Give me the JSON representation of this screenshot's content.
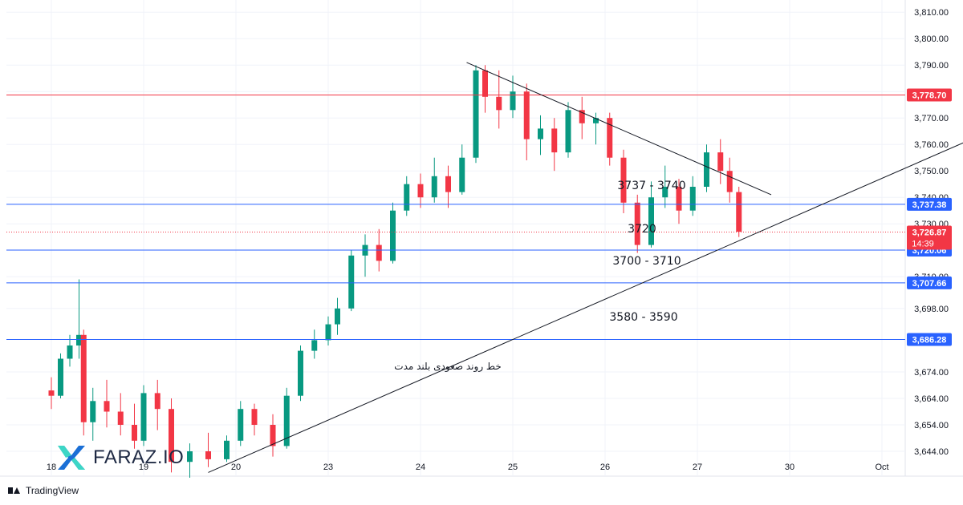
{
  "chart_data": {
    "type": "candlestick",
    "ylim": [
      3634,
      3812
    ],
    "yticks": [
      "3,810.00",
      "3,800.00",
      "3,790.00",
      "3,780.00",
      "3,770.00",
      "3,760.00",
      "3,750.00",
      "3,740.00",
      "3,730.00",
      "3,710.00",
      "3,698.00",
      "3,674.00",
      "3,664.00",
      "3,654.00",
      "3,644.00"
    ],
    "ytick_values": [
      3810,
      3800,
      3790,
      3780,
      3770,
      3760,
      3750,
      3740,
      3730,
      3710,
      3698,
      3674,
      3664,
      3654,
      3644
    ],
    "xticks": [
      "18",
      "19",
      "20",
      "23",
      "24",
      "25",
      "26",
      "27",
      "30",
      "Oct"
    ],
    "xtick_positions": [
      0,
      1,
      2,
      3,
      4,
      5,
      6,
      7,
      8,
      9
    ],
    "candles": [
      [
        0.0,
        3667,
        3672,
        3660,
        3665
      ],
      [
        0.1,
        3665,
        3681,
        3664,
        3679
      ],
      [
        0.2,
        3679,
        3688,
        3676,
        3684
      ],
      [
        0.3,
        3684,
        3709,
        3679,
        3688
      ],
      [
        0.35,
        3688,
        3690,
        3650,
        3655
      ],
      [
        0.45,
        3655,
        3668,
        3648,
        3663
      ],
      [
        0.6,
        3663,
        3671,
        3653,
        3659
      ],
      [
        0.75,
        3659,
        3666,
        3650,
        3654
      ],
      [
        0.9,
        3654,
        3662,
        3645,
        3648
      ],
      [
        1.0,
        3648,
        3669,
        3646,
        3666
      ],
      [
        1.15,
        3666,
        3671,
        3652,
        3660
      ],
      [
        1.3,
        3660,
        3664,
        3636,
        3640
      ],
      [
        1.5,
        3640,
        3647,
        3634,
        3644
      ],
      [
        1.7,
        3644,
        3651,
        3638,
        3641
      ],
      [
        1.9,
        3641,
        3650,
        3640,
        3648
      ],
      [
        2.05,
        3648,
        3663,
        3646,
        3660
      ],
      [
        2.2,
        3660,
        3662,
        3650,
        3654
      ],
      [
        2.4,
        3654,
        3658,
        3642,
        3646
      ],
      [
        2.55,
        3646,
        3668,
        3645,
        3665
      ],
      [
        2.7,
        3665,
        3684,
        3663,
        3682
      ],
      [
        2.85,
        3682,
        3690,
        3679,
        3686
      ],
      [
        3.0,
        3686,
        3695,
        3684,
        3692
      ],
      [
        3.1,
        3692,
        3702,
        3688,
        3698
      ],
      [
        3.25,
        3698,
        3720,
        3697,
        3718
      ],
      [
        3.4,
        3718,
        3726,
        3710,
        3722
      ],
      [
        3.55,
        3722,
        3728,
        3712,
        3716
      ],
      [
        3.7,
        3716,
        3738,
        3715,
        3735
      ],
      [
        3.85,
        3735,
        3748,
        3733,
        3745
      ],
      [
        4.0,
        3745,
        3749,
        3736,
        3740
      ],
      [
        4.15,
        3740,
        3755,
        3738,
        3748
      ],
      [
        4.3,
        3748,
        3752,
        3736,
        3742
      ],
      [
        4.45,
        3742,
        3760,
        3741,
        3755
      ],
      [
        4.6,
        3755,
        3790,
        3753,
        3788
      ],
      [
        4.7,
        3788,
        3790,
        3772,
        3778
      ],
      [
        4.85,
        3778,
        3788,
        3766,
        3773
      ],
      [
        5.0,
        3773,
        3786,
        3770,
        3780
      ],
      [
        5.15,
        3780,
        3783,
        3754,
        3762
      ],
      [
        5.3,
        3762,
        3771,
        3756,
        3766
      ],
      [
        5.45,
        3766,
        3770,
        3750,
        3757
      ],
      [
        5.6,
        3757,
        3776,
        3755,
        3773
      ],
      [
        5.75,
        3773,
        3778,
        3762,
        3768
      ],
      [
        5.9,
        3768,
        3772,
        3760,
        3770
      ],
      [
        6.05,
        3770,
        3772,
        3752,
        3755
      ],
      [
        6.2,
        3755,
        3758,
        3734,
        3738
      ],
      [
        6.35,
        3738,
        3741,
        3719,
        3722
      ],
      [
        6.5,
        3722,
        3746,
        3721,
        3740
      ],
      [
        6.65,
        3740,
        3752,
        3736,
        3744
      ],
      [
        6.8,
        3744,
        3747,
        3730,
        3735
      ],
      [
        6.95,
        3735,
        3748,
        3733,
        3744
      ],
      [
        7.1,
        3744,
        3760,
        3742,
        3757
      ],
      [
        7.25,
        3757,
        3762,
        3745,
        3750
      ],
      [
        7.35,
        3750,
        3755,
        3738,
        3742
      ],
      [
        7.45,
        3742,
        3744,
        3725,
        3727
      ]
    ],
    "hlines": [
      {
        "value": 3778.7,
        "label": "3,778.70",
        "color": "#f23645"
      },
      {
        "value": 3737.38,
        "label": "3,737.38",
        "color": "#2962ff"
      },
      {
        "value": 3720.06,
        "label": "3,720.06",
        "color": "#2962ff"
      },
      {
        "value": 3707.66,
        "label": "3,707.66",
        "color": "#2962ff"
      },
      {
        "value": 3686.28,
        "label": "3,686.28",
        "color": "#2962ff"
      }
    ],
    "current": {
      "value": 3726.87,
      "label": "3,726.87",
      "countdown": "14:39",
      "color": "#f23645"
    },
    "annotations": [
      "3737 - 3740",
      "3720",
      "3700 - 3710",
      "3580 - 3590",
      "خط روند صعودی بلند مدت"
    ],
    "trendlines": [
      {
        "name": "resistance",
        "from": [
          4.5,
          3791
        ],
        "to": [
          7.8,
          3741
        ]
      },
      {
        "name": "support",
        "from": [
          1.7,
          3636
        ],
        "to": [
          10.3,
          3767
        ]
      }
    ]
  },
  "brand": {
    "text": "FARAZ.IO"
  },
  "footer": {
    "text": "TradingView"
  },
  "colors": {
    "up": "#089981",
    "down": "#f23645",
    "grid": "#f0f3fa",
    "line_blue": "#2962ff",
    "line_red": "#f23645"
  }
}
